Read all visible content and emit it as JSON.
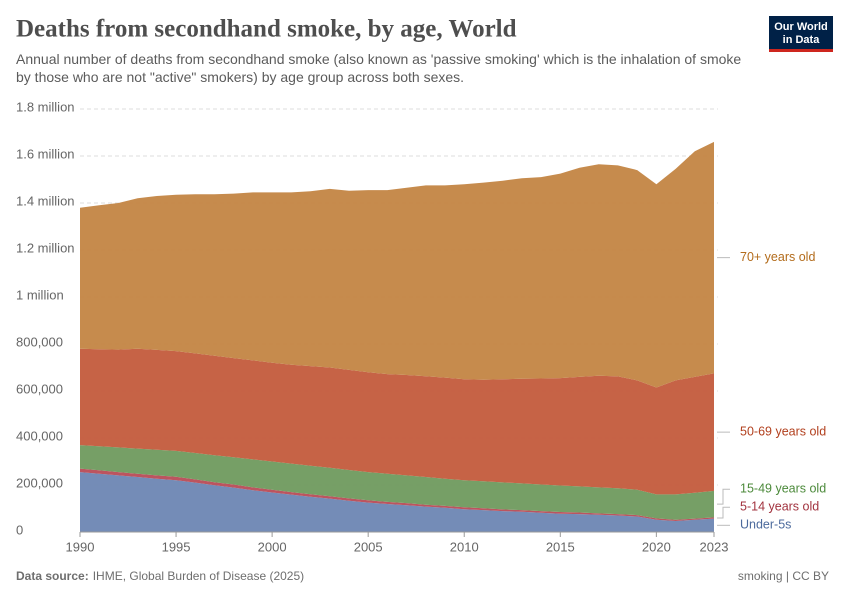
{
  "chart_data": {
    "type": "stacked-area",
    "title": "Deaths from secondhand smoke, by age, World",
    "subtitle": "Annual number of deaths from secondhand smoke (also known as 'passive smoking' which is the inhalation of smoke by those who are not \"active\" smokers) by age group across both sexes.",
    "logo": {
      "line1": "Our World",
      "line2": "in Data"
    },
    "source_label": "Data source:",
    "source": "IHME, Global Burden of Disease (2025)",
    "license": "smoking | CC BY",
    "x": [
      1990,
      1991,
      1992,
      1993,
      1994,
      1995,
      1996,
      1997,
      1998,
      1999,
      2000,
      2001,
      2002,
      2003,
      2004,
      2005,
      2006,
      2007,
      2008,
      2009,
      2010,
      2011,
      2012,
      2013,
      2014,
      2015,
      2016,
      2017,
      2018,
      2019,
      2020,
      2021,
      2022,
      2023
    ],
    "xlim": [
      1990,
      2023
    ],
    "xticks": [
      1990,
      1995,
      2000,
      2005,
      2010,
      2015,
      2020,
      2023
    ],
    "ylim": [
      0,
      1800000
    ],
    "yticks": [
      0,
      {
        "value": 200000,
        "label": "200,000"
      },
      {
        "value": 400000,
        "label": "400,000"
      },
      {
        "value": 600000,
        "label": "600,000"
      },
      {
        "value": 800000,
        "label": "800,000"
      },
      {
        "value": 1000000,
        "label": "1 million"
      },
      {
        "value": 1200000,
        "label": "1.2 million"
      },
      {
        "value": 1400000,
        "label": "1.4 million"
      },
      {
        "value": 1600000,
        "label": "1.6 million"
      },
      {
        "value": 1800000,
        "label": "1.8 million"
      }
    ],
    "grid": true,
    "series": [
      {
        "name": "Under-5s",
        "color": "#6d86b3",
        "label_color": "#4c6a9c",
        "values": [
          255000,
          248000,
          241000,
          234000,
          227000,
          220000,
          210000,
          199000,
          189000,
          178000,
          168000,
          159000,
          150000,
          142000,
          133000,
          125000,
          119000,
          114000,
          108000,
          103000,
          97000,
          93000,
          89000,
          86000,
          82000,
          78000,
          76000,
          73000,
          70000,
          66000,
          52000,
          47000,
          52000,
          57000
        ]
      },
      {
        "name": "5-14 years old",
        "color": "#b84b56",
        "label_color": "#a2333f",
        "values": [
          15000,
          15000,
          14000,
          14000,
          14000,
          15000,
          14000,
          13000,
          13000,
          12000,
          12000,
          11000,
          11000,
          10000,
          10000,
          10000,
          9000,
          9000,
          8000,
          8000,
          8000,
          8000,
          7000,
          7000,
          7000,
          7000,
          7000,
          6000,
          6000,
          6000,
          6000,
          5000,
          5000,
          5000
        ]
      },
      {
        "name": "15-49 years old",
        "color": "#6f9a5e",
        "label_color": "#4c8a3b",
        "values": [
          100000,
          102000,
          105000,
          107000,
          109000,
          110000,
          112000,
          115000,
          116000,
          119000,
          120000,
          121000,
          121000,
          121000,
          121000,
          120000,
          120000,
          118000,
          118000,
          116000,
          115000,
          115000,
          115000,
          114000,
          113000,
          113000,
          111000,
          111000,
          110000,
          108000,
          102000,
          108000,
          110000,
          113000
        ]
      },
      {
        "name": "50-69 years old",
        "color": "#c35b3c",
        "label_color": "#b2401e",
        "values": [
          410000,
          413000,
          416000,
          425000,
          425000,
          425000,
          424000,
          423000,
          422000,
          421000,
          420000,
          421000,
          424000,
          427000,
          426000,
          425000,
          424000,
          427000,
          429000,
          430000,
          430000,
          432000,
          439000,
          445000,
          451000,
          457000,
          466000,
          475000,
          476000,
          465000,
          455000,
          485000,
          493000,
          500000
        ]
      },
      {
        "name": "70+ years old",
        "color": "#c38543",
        "label_color": "#b36c1c",
        "values": [
          600000,
          612000,
          624000,
          640000,
          655000,
          665000,
          677000,
          687000,
          700000,
          715000,
          725000,
          733000,
          744000,
          760000,
          762000,
          775000,
          783000,
          797000,
          812000,
          818000,
          830000,
          839000,
          845000,
          853000,
          857000,
          870000,
          890000,
          900000,
          898000,
          895000,
          865000,
          900000,
          960000,
          985000
        ]
      }
    ]
  }
}
